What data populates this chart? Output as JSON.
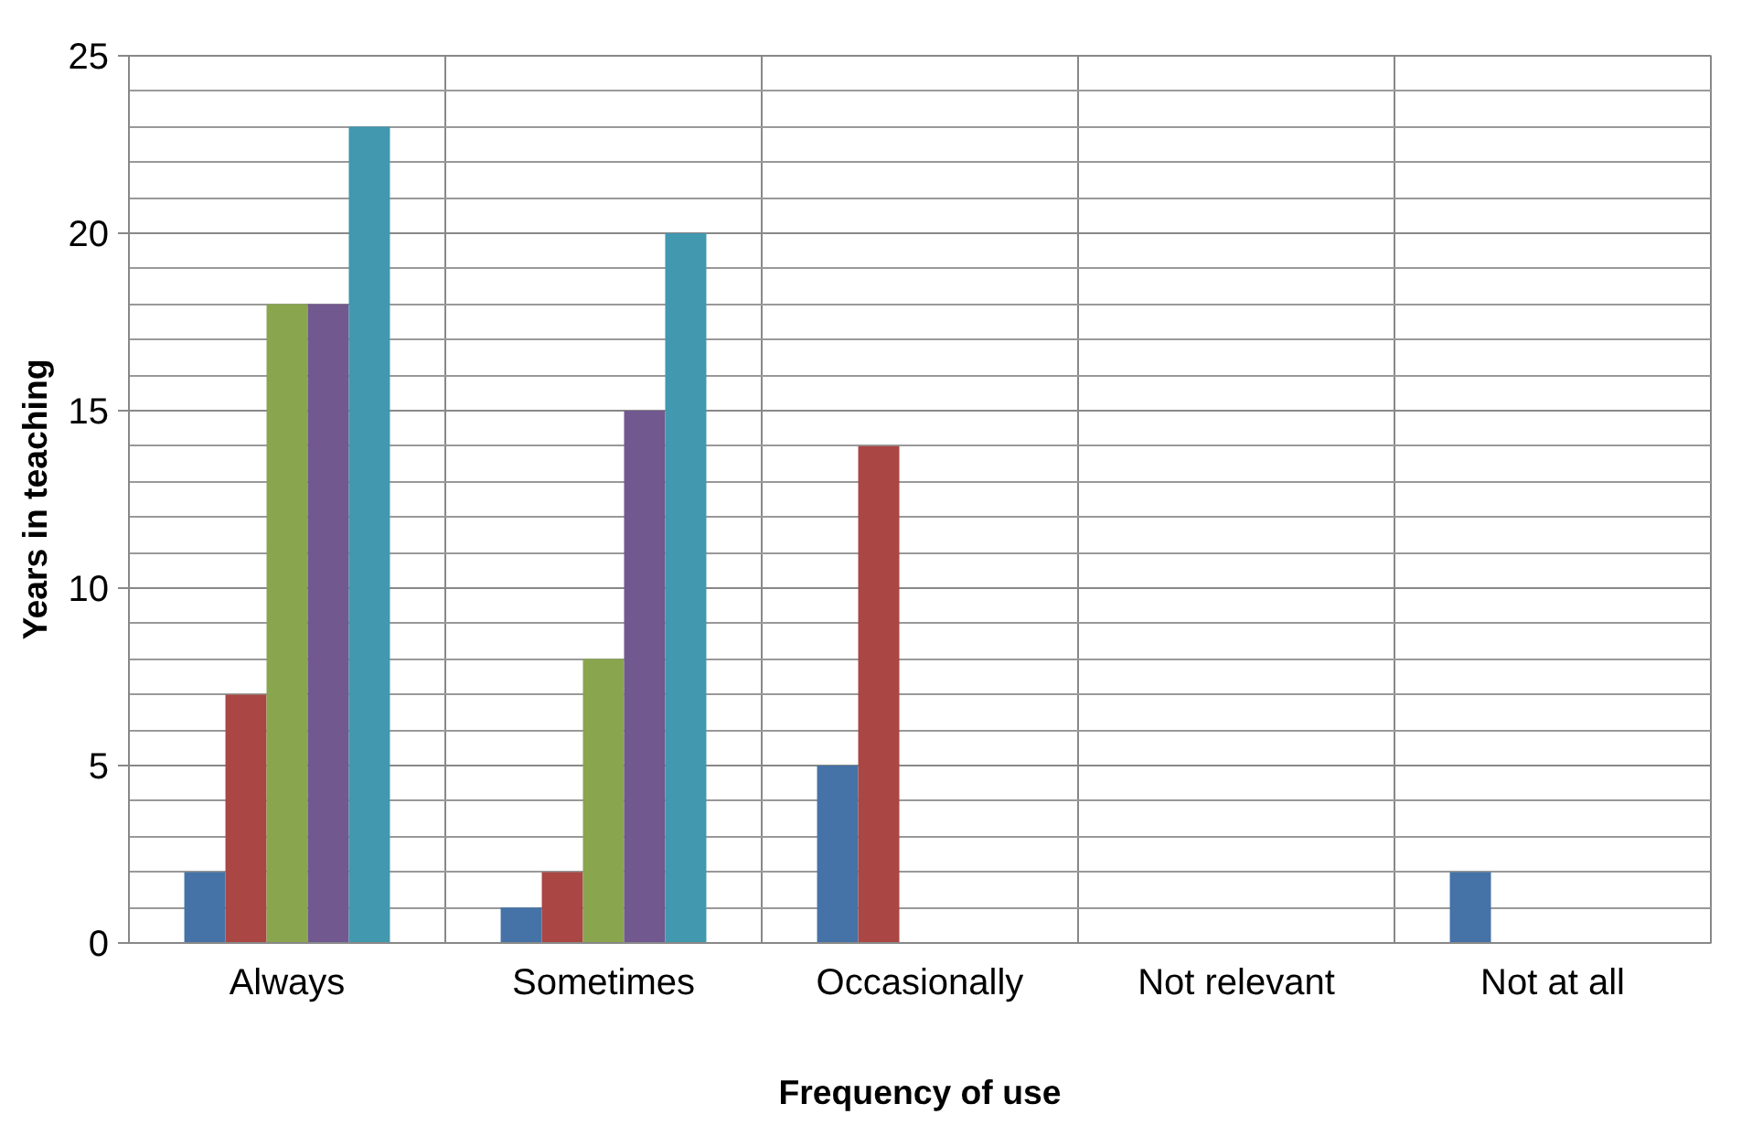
{
  "chart_data": {
    "type": "bar",
    "xlabel": "Frequency of use",
    "ylabel": "Years in teaching",
    "categories": [
      "Always",
      "Sometimes",
      "Occasionally",
      "Not relevant",
      "Not at all"
    ],
    "series": [
      {
        "color": "#4572a7",
        "values": [
          2,
          1,
          5,
          0,
          2
        ]
      },
      {
        "color": "#aa4643",
        "values": [
          7,
          2,
          14,
          0,
          0
        ]
      },
      {
        "color": "#89a54e",
        "values": [
          18,
          8,
          0,
          0,
          0
        ]
      },
      {
        "color": "#71588f",
        "values": [
          18,
          15,
          0,
          0,
          0
        ]
      },
      {
        "color": "#4198af",
        "values": [
          23,
          20,
          0,
          0,
          0
        ]
      }
    ],
    "ylim": [
      0,
      25
    ],
    "yticks": [
      0,
      5,
      10,
      15,
      20,
      25
    ],
    "grid": true
  }
}
